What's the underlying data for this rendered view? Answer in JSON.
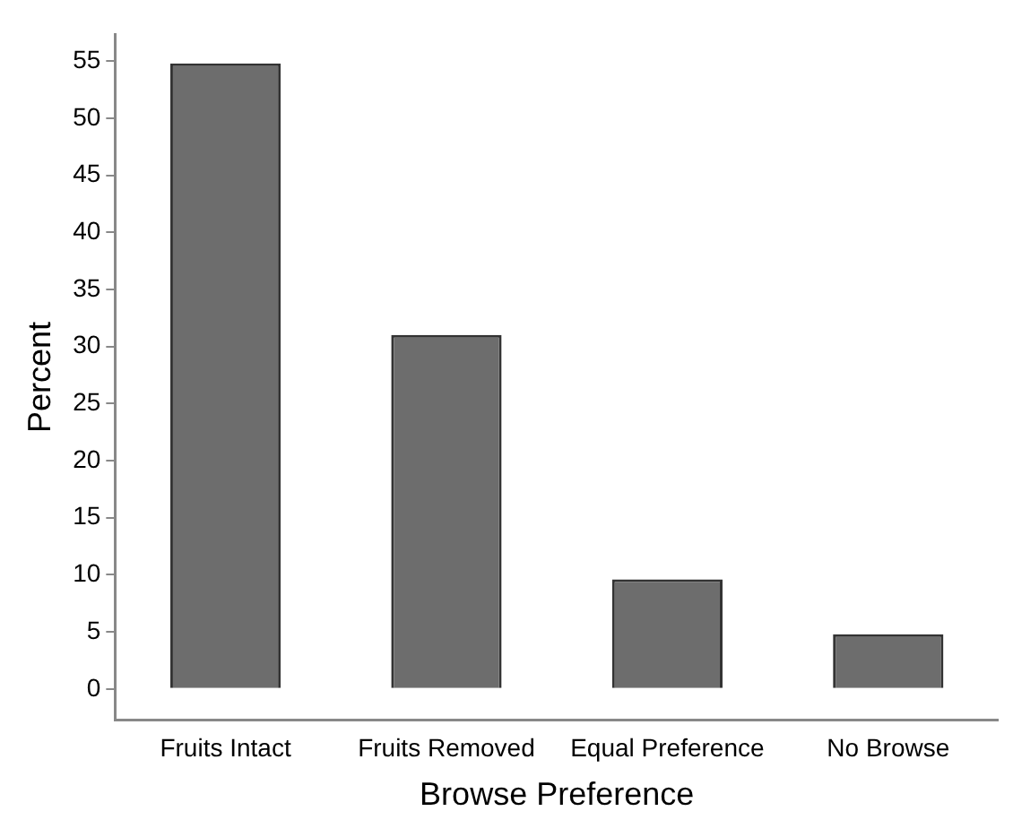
{
  "chart_data": {
    "type": "bar",
    "xlabel": "Browse Preference",
    "ylabel": "Percent",
    "categories": [
      "Fruits Intact",
      "Fruits Removed",
      "Equal Preference",
      "No Browse"
    ],
    "values": [
      54.8,
      31.0,
      9.6,
      4.8
    ],
    "color": "#6d6d6d",
    "ylim": [
      -2.7,
      57.3
    ],
    "yticks": [
      0,
      5,
      10,
      15,
      20,
      25,
      30,
      35,
      40,
      45,
      50,
      55
    ],
    "grid": false,
    "legend": false
  }
}
